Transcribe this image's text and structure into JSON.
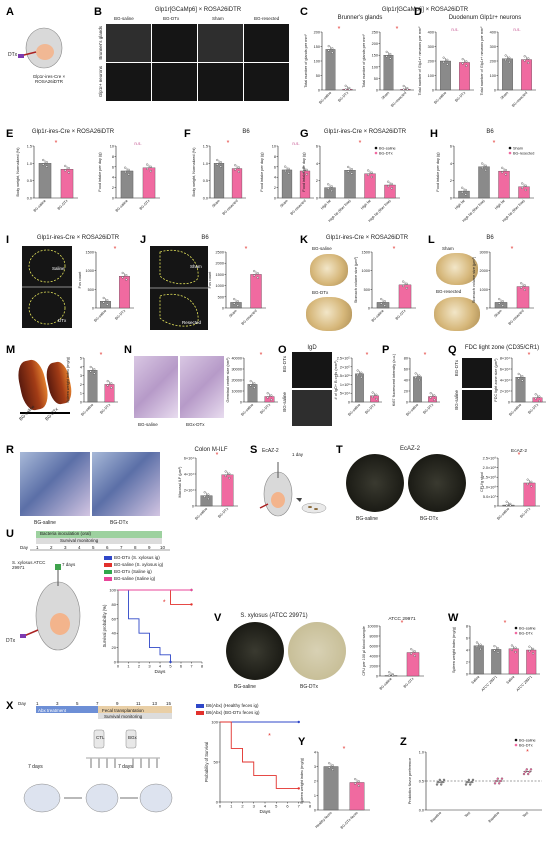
{
  "panels": {
    "A": {
      "label": "A",
      "dtx": "DTx",
      "caption": "Glp1r-ires-Cre × ROSA26iDTR"
    },
    "B": {
      "label": "B",
      "header": "Glp1r[GCaMp6] × ROSA26iDTR",
      "cols": [
        "BG-saline",
        "BG-DTx",
        "Sham",
        "BG-resected"
      ],
      "rows": [
        "Brunner's glands",
        "Glp1r+ neurons"
      ]
    },
    "C": {
      "label": "C",
      "header": "Brunner's glands"
    },
    "D": {
      "label": "D",
      "header": "Duodenum Glp1r+ neurons"
    },
    "CD_header": "Glp1r[GCaMp6] × ROSA26iDTR",
    "E": {
      "label": "E",
      "header": "Glp1r-ires-Cre × ROSA26iDTR"
    },
    "F": {
      "label": "F",
      "header": "B6"
    },
    "G": {
      "label": "G",
      "header": "Glp1r-ires-Cre × ROSA26iDTR"
    },
    "H": {
      "label": "H",
      "header": "B6"
    },
    "I": {
      "label": "I",
      "header": "Glp1r-ires-Cre × ROSA26iDTR",
      "img_labels": [
        "Saline",
        "DTx"
      ]
    },
    "J": {
      "label": "J",
      "header": "B6",
      "img_labels": [
        "Sham",
        "Resected"
      ]
    },
    "K": {
      "label": "K",
      "header": "Glp1r-ires-Cre × ROSA26iDTR",
      "img_labels": [
        "BG-saline",
        "BG-DTx"
      ]
    },
    "L": {
      "label": "L",
      "header": "B6",
      "img_labels": [
        "Sham",
        "BG-resected"
      ]
    },
    "M": {
      "label": "M",
      "img_labels": [
        "BG-saline",
        "BG-DTx"
      ]
    },
    "N": {
      "label": "N",
      "img_labels": [
        "BG-saline",
        "BGx-DTx"
      ]
    },
    "O": {
      "label": "O",
      "header": "IgD",
      "img_labels": [
        "BG-DTx",
        "BG-saline"
      ]
    },
    "P": {
      "label": "P"
    },
    "Q": {
      "label": "Q",
      "header": "FDC light zone (CD35/CR1)",
      "img_labels": [
        "BG-DTx",
        "BG-saline"
      ]
    },
    "R": {
      "label": "R",
      "header": "Colon M-ILF",
      "img_labels": [
        "BG-saline",
        "BG-DTx"
      ]
    },
    "S": {
      "label": "S",
      "header": "EcAZ-2",
      "dose": "1 day"
    },
    "T": {
      "label": "T",
      "header": "EcAZ-2",
      "img_labels": [
        "BG-saline",
        "BG-DTx"
      ],
      "chart_title": "EcAZ-2"
    },
    "U": {
      "label": "U",
      "timeline_title": "Bacteria inoculation (oral)",
      "survival_title": "Survival monitoring",
      "day_label": "Day",
      "days": [
        "1",
        "2",
        "3",
        "4",
        "5",
        "6",
        "7",
        "8",
        "9",
        "10"
      ],
      "inoc": "S. xylosus ATCC 29971",
      "ig_days": "7 days",
      "dtx": "DTx",
      "legend": [
        "BG-DTx (S. xylosus ig)",
        "BG-saline (S. xylosus ig)",
        "BG-DTx (Saline ig)",
        "BG-saline (Saline ig)"
      ]
    },
    "V": {
      "label": "V",
      "header": "S. xylosus (ATCC 29971)",
      "img_labels": [
        "BG-saline",
        "BG-DTx"
      ],
      "chart_title": "ATCC 29971"
    },
    "W": {
      "label": "W"
    },
    "X": {
      "label": "X",
      "days": [
        "1",
        "2",
        "3",
        "4",
        "5",
        "6",
        "7",
        "8",
        "9",
        "10",
        "11",
        "12",
        "13",
        "14",
        "15"
      ],
      "day_label": "Day",
      "abx": "Abx treatment",
      "fecal": "Fecal transplantation",
      "survival": "Survival monitoring",
      "ctl": "CTL",
      "bgx": "BGx",
      "seven1": "7 days",
      "seven2": "7 days",
      "legend": [
        "B6(Abx) (Healthy feces ig)",
        "B6(Abx) (BG-DTx feces ig)"
      ]
    },
    "Y": {
      "label": "Y"
    },
    "Z": {
      "label": "Z"
    }
  },
  "colors": {
    "grey_bar": "#8a8a8a",
    "pink_bar": "#f06aa0",
    "red_star": "#e2312c",
    "blue_line": "#2f47c8",
    "green_line": "#2fa84b",
    "magenta_line": "#e8459a"
  },
  "chart_data": [
    {
      "id": "C1",
      "type": "bar",
      "categories": [
        "BG-saline",
        "BG-DTx"
      ],
      "values": [
        140,
        3
      ],
      "ylabel": "Total number of glands per mm²",
      "ylim": [
        0,
        200
      ],
      "yticks": [
        "0",
        "50",
        "100",
        "150",
        "200"
      ],
      "sig": "*"
    },
    {
      "id": "C2",
      "type": "bar",
      "categories": [
        "Sham",
        "BG-resected"
      ],
      "values": [
        150,
        3
      ],
      "ylabel": "Total number of glands per mm²",
      "ylim": [
        0,
        250
      ],
      "yticks": [
        "0",
        "50",
        "100",
        "150",
        "200",
        "250"
      ],
      "sig": "*"
    },
    {
      "id": "D1",
      "type": "bar",
      "categories": [
        "BG-saline",
        "BG-DTx"
      ],
      "values": [
        200,
        190
      ],
      "ylabel": "Total number of Glp1r+ neurons per mm²",
      "ylim": [
        0,
        400
      ],
      "yticks": [
        "0",
        "100",
        "200",
        "300",
        "400"
      ],
      "sig": "n.s."
    },
    {
      "id": "D2",
      "type": "bar",
      "categories": [
        "Sham",
        "BG-resected"
      ],
      "values": [
        215,
        210
      ],
      "ylabel": "Total number of Glp1r+ neurons per mm²",
      "ylim": [
        0,
        400
      ],
      "yticks": [
        "0",
        "100",
        "200",
        "300",
        "400"
      ],
      "sig": "n.s."
    },
    {
      "id": "E1",
      "type": "bar",
      "categories": [
        "BG-saline",
        "BG-DTx"
      ],
      "values": [
        1.0,
        0.83
      ],
      "ylabel": "Body weight, Normalized (%)",
      "ylim": [
        0,
        1.5
      ],
      "yticks": [
        "0.0",
        "0.5",
        "1.0",
        "1.5"
      ],
      "sig": "*"
    },
    {
      "id": "E2",
      "type": "bar",
      "categories": [
        "BG-saline",
        "BG-DTx"
      ],
      "values": [
        5.2,
        5.8
      ],
      "ylabel": "Food intake per day (g)",
      "ylim": [
        0,
        10
      ],
      "yticks": [
        "0",
        "2",
        "4",
        "6",
        "8",
        "10"
      ],
      "sig": "n.s."
    },
    {
      "id": "F1",
      "type": "bar",
      "categories": [
        "Sham",
        "BG-resected"
      ],
      "values": [
        1.0,
        0.85
      ],
      "ylabel": "Body weight, Normalized (%)",
      "ylim": [
        0,
        1.5
      ],
      "yticks": [
        "0.0",
        "0.5",
        "1.0",
        "1.5"
      ],
      "sig": "*"
    },
    {
      "id": "F2",
      "type": "bar",
      "categories": [
        "Sham",
        "BG-resected"
      ],
      "values": [
        5.4,
        5.2
      ],
      "ylabel": "Food intake per day (g)",
      "ylim": [
        0,
        10
      ],
      "yticks": [
        "0",
        "2",
        "4",
        "6",
        "8",
        "10"
      ],
      "sig": "n.s."
    },
    {
      "id": "G",
      "type": "bar",
      "categories": [
        "High fat",
        "High fat (fiber free)",
        "High fat",
        "High fat (fiber free)"
      ],
      "values": [
        1.2,
        3.2,
        2.8,
        1.5
      ],
      "series_colors": [
        "grey",
        "grey",
        "pink",
        "pink"
      ],
      "ylabel": "Food intake per day (g)",
      "ylim": [
        0,
        6
      ],
      "yticks": [
        "0",
        "2",
        "4",
        "6"
      ],
      "legend": [
        "BG-saline",
        "BG-DTx"
      ],
      "sig": "*"
    },
    {
      "id": "H",
      "type": "bar",
      "categories": [
        "High fat",
        "High fat (fiber free)",
        "High fat",
        "High fat (fiber free)"
      ],
      "values": [
        0.8,
        3.6,
        3.1,
        1.3
      ],
      "series_colors": [
        "grey",
        "grey",
        "pink",
        "pink"
      ],
      "ylabel": "Food intake per day (g)",
      "ylim": [
        0,
        6
      ],
      "yticks": [
        "0",
        "2",
        "4",
        "6"
      ],
      "legend": [
        "Sham",
        "BG-resected"
      ],
      "sig": "*"
    },
    {
      "id": "I",
      "type": "bar",
      "categories": [
        "BG-saline",
        "BG-DTx"
      ],
      "values": [
        180,
        850
      ],
      "ylabel": "Fos count",
      "ylim": [
        0,
        1500
      ],
      "yticks": [
        "0",
        "500",
        "1000",
        "1500"
      ],
      "sig": "*"
    },
    {
      "id": "J",
      "type": "bar",
      "categories": [
        "Sham",
        "BG-resected"
      ],
      "values": [
        250,
        1500
      ],
      "ylabel": "Fos count",
      "ylim": [
        0,
        2500
      ],
      "yticks": [
        "0",
        "500",
        "1000",
        "1500",
        "2000",
        "2500"
      ],
      "sig": "*"
    },
    {
      "id": "K",
      "type": "bar",
      "categories": [
        "BG-saline",
        "BG-DTx"
      ],
      "values": [
        150,
        620
      ],
      "ylabel": "Stomach volume size (μm³)",
      "ylim": [
        0,
        1500
      ],
      "yticks": [
        "0",
        "500",
        "1000",
        "1500"
      ],
      "sig": "*"
    },
    {
      "id": "L",
      "type": "bar",
      "categories": [
        "Sham",
        "BG-resected"
      ],
      "values": [
        300,
        1150
      ],
      "ylabel": "Stomach volume size (μm³)",
      "ylim": [
        0,
        3000
      ],
      "yticks": [
        "0",
        "1000",
        "2000",
        "3000"
      ],
      "sig": "*"
    },
    {
      "id": "M",
      "type": "bar",
      "categories": [
        "BG-saline",
        "BG-DTx"
      ],
      "values": [
        3.6,
        2.0
      ],
      "ylabel": "Spleen weight index (mg/g)",
      "ylim": [
        0,
        5
      ],
      "yticks": [
        "0",
        "1",
        "2",
        "3",
        "4",
        "5"
      ],
      "sig": "*"
    },
    {
      "id": "N",
      "type": "bar",
      "categories": [
        "BG-saline",
        "BG-DTx"
      ],
      "values": [
        16000,
        5000
      ],
      "ylabel": "Germinal center size (nm²)",
      "ylim": [
        0,
        40000
      ],
      "yticks": [
        "0",
        "10000",
        "20000",
        "30000",
        "40000"
      ],
      "sig": "*"
    },
    {
      "id": "O",
      "type": "bar",
      "categories": [
        "BG-saline",
        "BG-DTx"
      ],
      "values": [
        1.6,
        0.35
      ],
      "ylabel": "# of IgD+ B cells (mm²)",
      "ylim": [
        0,
        2.5
      ],
      "yticks": [
        "0",
        "5×10⁴",
        "1×10⁵",
        "1.5×10⁵",
        "2×10⁵",
        "2.5×10⁵"
      ],
      "sig": "*"
    },
    {
      "id": "P",
      "type": "bar",
      "categories": [
        "BG-saline",
        "BG-DTx"
      ],
      "values": [
        46,
        10
      ],
      "ylabel": "Ki67 fluorescent intensity (a.u.)",
      "ylim": [
        0,
        80
      ],
      "yticks": [
        "0",
        "20",
        "40",
        "60",
        "80"
      ],
      "sig": "*"
    },
    {
      "id": "Q",
      "type": "bar",
      "categories": [
        "BG-saline",
        "BG-DTx"
      ],
      "values": [
        4.5,
        0.8
      ],
      "ylabel": "FDC light zone size (μm²)",
      "ylim": [
        0,
        8
      ],
      "yticks": [
        "0",
        "2×10⁴",
        "4×10⁴",
        "6×10⁴",
        "8×10⁴"
      ],
      "sig": "*"
    },
    {
      "id": "R",
      "type": "bar",
      "categories": [
        "BG-saline",
        "BG-DTx"
      ],
      "values": [
        1.3,
        3.9
      ],
      "ylabel": "Mucosal ILF (μm²)",
      "ylim": [
        0,
        6
      ],
      "yticks": [
        "0",
        "2×10⁴",
        "4×10⁴",
        "6×10⁴"
      ],
      "sig": "*"
    },
    {
      "id": "T",
      "type": "bar",
      "categories": [
        "BG-saline",
        "BG-DTx"
      ],
      "values": [
        0.05,
        1.2
      ],
      "ylabel": "CFU/g stool",
      "ylim": [
        0,
        2.5
      ],
      "yticks": [
        "0",
        "5.0×10⁷",
        "1.0×10⁸",
        "1.5×10⁸",
        "2.0×10⁸",
        "2.5×10⁸"
      ],
      "title": "EcAZ-2",
      "sig": "*"
    },
    {
      "id": "V",
      "type": "bar",
      "categories": [
        "BG-saline",
        "BG-DTx"
      ],
      "values": [
        0,
        4700
      ],
      "ylabel": "CFU per 100 μl blood sample",
      "ylim": [
        0,
        10000
      ],
      "yticks": [
        "0",
        "2000",
        "4000",
        "6000",
        "8000",
        "10000"
      ],
      "title": "ATCC 29971",
      "sig": "*"
    },
    {
      "id": "W",
      "type": "bar",
      "categories": [
        "Saline",
        "ATCC 29971",
        "Saline",
        "ATCC 29971"
      ],
      "values": [
        4.7,
        4.1,
        4.2,
        4.0
      ],
      "series_colors": [
        "grey",
        "grey",
        "pink",
        "pink"
      ],
      "ylabel": "Spleen weight index (mg/g)",
      "ylim": [
        0,
        8
      ],
      "yticks": [
        "0",
        "2",
        "4",
        "6",
        "8"
      ],
      "legend": [
        "BG-saline",
        "BG-DTx"
      ],
      "sig": "*"
    },
    {
      "id": "Y",
      "type": "bar",
      "categories": [
        "Healthy feces",
        "BG-DTx-feces"
      ],
      "values": [
        3.0,
        1.9
      ],
      "ylabel": "Spleen weight index (mg/g)",
      "ylim": [
        0,
        4
      ],
      "yticks": [
        "0",
        "1",
        "2",
        "3",
        "4"
      ],
      "sig": "*"
    },
    {
      "id": "Z",
      "type": "scatter",
      "categories": [
        "Baseline",
        "Test",
        "Baseline",
        "Test"
      ],
      "values": [
        0.48,
        0.48,
        0.5,
        0.66
      ],
      "series_colors": [
        "grey",
        "grey",
        "pink",
        "pink"
      ],
      "ylabel": "Probiotics flavor preference",
      "ylim": [
        0,
        1
      ],
      "yticks": [
        "0.0",
        "0.5",
        "1.0"
      ],
      "legend": [
        "BG-saline",
        "BG-DTx"
      ],
      "sig": "*"
    },
    {
      "id": "U_surv",
      "type": "line",
      "xlabel": "Days",
      "ylabel": "Survival probability (%)",
      "xlim": [
        0,
        8
      ],
      "ylim": [
        0,
        100
      ],
      "xticks": [
        "0",
        "1",
        "2",
        "3",
        "4",
        "5",
        "6",
        "7",
        "8"
      ],
      "yticks": [
        "0",
        "20",
        "40",
        "60",
        "80",
        "100"
      ],
      "series": [
        {
          "name": "BG-DTx (S. xylosus ig)",
          "color": "blue",
          "x": [
            0,
            1,
            1,
            2,
            2,
            3,
            3,
            4,
            4,
            5,
            5
          ],
          "y": [
            100,
            100,
            60,
            60,
            40,
            40,
            20,
            20,
            10,
            10,
            0
          ]
        },
        {
          "name": "BG-saline (S. xylosus ig)",
          "color": "red",
          "x": [
            0,
            5,
            5,
            7
          ],
          "y": [
            100,
            100,
            80,
            80
          ]
        },
        {
          "name": "BG-DTx (Saline ig)",
          "color": "green",
          "x": [
            0,
            7
          ],
          "y": [
            100,
            100
          ]
        },
        {
          "name": "BG-saline (Saline ig)",
          "color": "magenta",
          "x": [
            0,
            7
          ],
          "y": [
            100,
            100
          ]
        }
      ],
      "sig": "*"
    },
    {
      "id": "X_surv",
      "type": "line",
      "xlabel": "Days",
      "ylabel": "Probability of Survival",
      "xlim": [
        0,
        8
      ],
      "ylim": [
        0,
        100
      ],
      "xticks": [
        "0",
        "1",
        "2",
        "3",
        "4",
        "5",
        "6",
        "7",
        "8"
      ],
      "yticks": [
        "0",
        "50",
        "100"
      ],
      "series": [
        {
          "name": "B6(Abx) (Healthy feces ig)",
          "color": "blue",
          "x": [
            0,
            7
          ],
          "y": [
            100,
            100
          ]
        },
        {
          "name": "B6(Abx) (BG-DTx feces ig)",
          "color": "red",
          "x": [
            0,
            1,
            1,
            2,
            2,
            3,
            3,
            4,
            4,
            5,
            5,
            6,
            6,
            7
          ],
          "y": [
            100,
            100,
            67,
            67,
            50,
            50,
            33,
            33,
            33,
            33,
            17,
            17,
            17,
            17
          ]
        }
      ],
      "sig": "*"
    }
  ]
}
